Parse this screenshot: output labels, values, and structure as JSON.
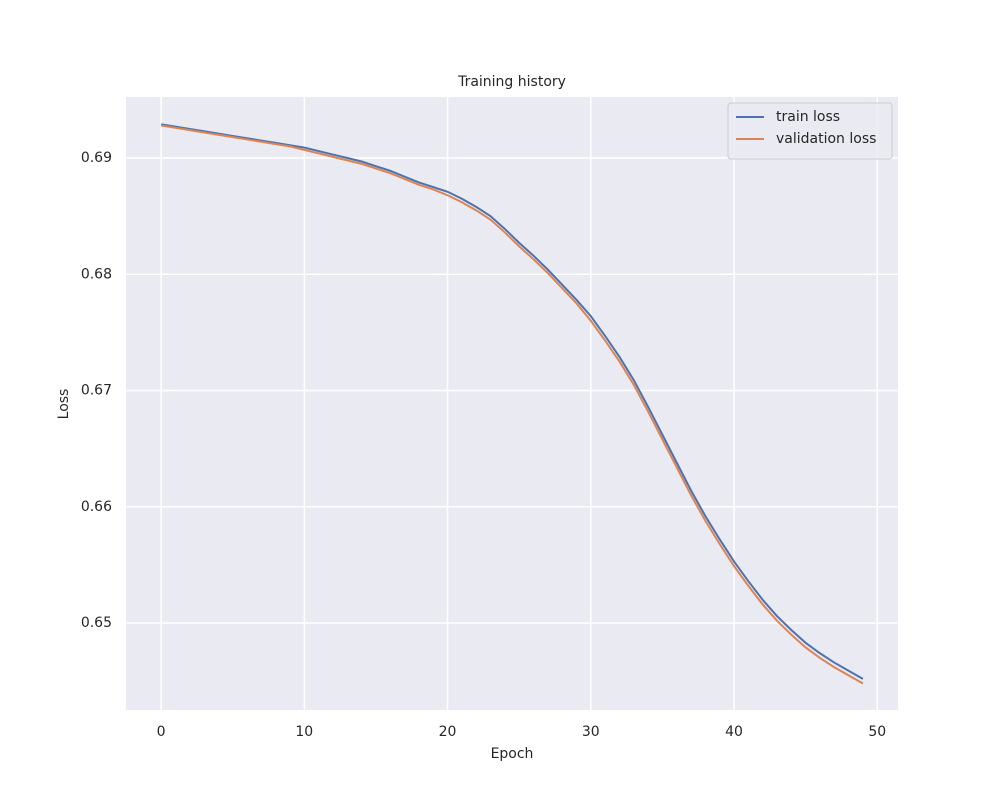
{
  "chart_data": {
    "type": "line",
    "title": "Training history",
    "x_label": "Epoch",
    "y_label": "Loss",
    "x": [
      0,
      1,
      2,
      3,
      4,
      5,
      6,
      7,
      8,
      9,
      10,
      11,
      12,
      13,
      14,
      15,
      16,
      17,
      18,
      19,
      20,
      21,
      22,
      23,
      24,
      25,
      26,
      27,
      28,
      29,
      30,
      31,
      32,
      33,
      34,
      35,
      36,
      37,
      38,
      39,
      40,
      41,
      42,
      43,
      44,
      45,
      46,
      47,
      48,
      49
    ],
    "series": [
      {
        "name": "train loss",
        "color": "#4c72b0",
        "values": [
          0.6929,
          0.6927,
          0.6925,
          0.6923,
          0.6921,
          0.6919,
          0.6917,
          0.6915,
          0.6913,
          0.6911,
          0.6909,
          0.6906,
          0.6903,
          0.69,
          0.6897,
          0.6893,
          0.6889,
          0.6884,
          0.6879,
          0.6875,
          0.6871,
          0.6865,
          0.6858,
          0.685,
          0.6839,
          0.6827,
          0.6816,
          0.6804,
          0.6791,
          0.6778,
          0.6764,
          0.6747,
          0.6729,
          0.6709,
          0.6686,
          0.6662,
          0.6638,
          0.6614,
          0.6592,
          0.6572,
          0.6553,
          0.6536,
          0.652,
          0.6506,
          0.6494,
          0.6483,
          0.6474,
          0.6466,
          0.6459,
          0.6452
        ]
      },
      {
        "name": "validation loss",
        "color": "#dd8452",
        "values": [
          0.6928,
          0.6926,
          0.6924,
          0.6922,
          0.692,
          0.6918,
          0.6916,
          0.6914,
          0.6912,
          0.691,
          0.6907,
          0.6904,
          0.6901,
          0.6898,
          0.6895,
          0.6891,
          0.6887,
          0.6882,
          0.6877,
          0.6873,
          0.6868,
          0.6862,
          0.6855,
          0.6847,
          0.6836,
          0.6824,
          0.6813,
          0.6801,
          0.6788,
          0.6775,
          0.676,
          0.6743,
          0.6725,
          0.6705,
          0.6682,
          0.6658,
          0.6634,
          0.661,
          0.6588,
          0.6568,
          0.6549,
          0.6532,
          0.6516,
          0.6502,
          0.649,
          0.6479,
          0.647,
          0.6462,
          0.6455,
          0.6448
        ]
      }
    ],
    "xlim": [
      -2.45,
      51.45
    ],
    "ylim": [
      0.64252,
      0.69525
    ],
    "xticks": [
      0,
      10,
      20,
      30,
      40,
      50
    ],
    "yticks": [
      0.65,
      0.66,
      0.67,
      0.68,
      0.69
    ],
    "grid": true,
    "legend": "upper right"
  }
}
